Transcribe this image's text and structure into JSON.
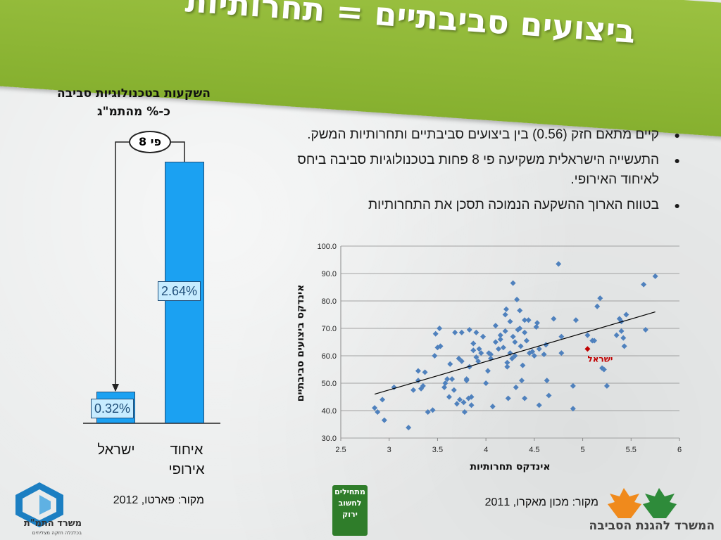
{
  "slide_title": "ביצועים סביבתיים = תחרותיות",
  "left_chart": {
    "title_line1": "השקעות בטכנולוגיות סביבה",
    "title_line2": "כ-% מהתמ\"ג",
    "ratio_label": "פי 8",
    "source": "מקור: פארטו, 2012",
    "bars": [
      {
        "category": "ישראל",
        "value": 0.32,
        "value_label": "0.32%"
      },
      {
        "category": "איחוד אירופי",
        "category_line1": "איחוד",
        "category_line2": "אירופי",
        "value": 2.64,
        "value_label": "2.64%"
      }
    ],
    "colors": {
      "bar": "#1ba1f2",
      "label_bg": "#c7ecff",
      "border": "#1f4e79"
    }
  },
  "bullets": [
    "קיים מתאם חזק  (0.56) בין ביצועים סביבתיים ותחרותיות המשק.",
    "התעשייה הישראלית משקיעה פי 8 פחות בטכנולוגיות סביבה ביחס לאיחוד האירופי.",
    "בטווח הארוך ההשקעה הנמוכה תסכן את התחרותיות"
  ],
  "scatter_source": "מקור: מכון מאקרו, 2011",
  "chart_data": {
    "type": "scatter",
    "xlabel": "אינדקס תחרותיות",
    "ylabel": "אינדקס ביצועים סביבתיים",
    "xlim": [
      2.5,
      6
    ],
    "ylim": [
      30,
      100
    ],
    "xticks": [
      "2.5",
      "3",
      "3.5",
      "4",
      "4.5",
      "5",
      "5.5",
      "6"
    ],
    "yticks": [
      "30.0",
      "40.0",
      "50.0",
      "60.0",
      "70.0",
      "80.0",
      "90.0",
      "100.0"
    ],
    "grid": true,
    "marker_color": "#4f81bd",
    "highlight_color": "#c00000",
    "highlight": {
      "label": "ישראל",
      "x": 5.05,
      "y": 62.5
    },
    "trendline": {
      "x": [
        2.85,
        5.75
      ],
      "y": [
        46.0,
        76.0
      ]
    },
    "points": [
      [
        2.85,
        41
      ],
      [
        2.88,
        39.5
      ],
      [
        2.93,
        44
      ],
      [
        2.95,
        36.5
      ],
      [
        3.05,
        48.5
      ],
      [
        3.2,
        33.8
      ],
      [
        3.25,
        47.5
      ],
      [
        3.3,
        54.5
      ],
      [
        3.3,
        51
      ],
      [
        3.33,
        48
      ],
      [
        3.35,
        49
      ],
      [
        3.37,
        54
      ],
      [
        3.4,
        39.5
      ],
      [
        3.45,
        40.2
      ],
      [
        3.47,
        60
      ],
      [
        3.48,
        68
      ],
      [
        3.5,
        63
      ],
      [
        3.52,
        70
      ],
      [
        3.53,
        63.5
      ],
      [
        3.57,
        48.5
      ],
      [
        3.58,
        50
      ],
      [
        3.6,
        51.5
      ],
      [
        3.62,
        45
      ],
      [
        3.63,
        57
      ],
      [
        3.65,
        51.5
      ],
      [
        3.67,
        47.5
      ],
      [
        3.68,
        68.5
      ],
      [
        3.7,
        42.5
      ],
      [
        3.72,
        59
      ],
      [
        3.73,
        44
      ],
      [
        3.75,
        58
      ],
      [
        3.75,
        68.5
      ],
      [
        3.77,
        43
      ],
      [
        3.78,
        39.5
      ],
      [
        3.8,
        51.5
      ],
      [
        3.8,
        51
      ],
      [
        3.82,
        44.5
      ],
      [
        3.83,
        56
      ],
      [
        3.83,
        69.5
      ],
      [
        3.85,
        42
      ],
      [
        3.85,
        45
      ],
      [
        3.87,
        62
      ],
      [
        3.87,
        64.5
      ],
      [
        3.9,
        68.5
      ],
      [
        3.9,
        59.5
      ],
      [
        3.92,
        58
      ],
      [
        3.93,
        62.5
      ],
      [
        3.95,
        61
      ],
      [
        3.97,
        67
      ],
      [
        4.0,
        50
      ],
      [
        4.02,
        54.5
      ],
      [
        4.03,
        61
      ],
      [
        4.05,
        59
      ],
      [
        4.05,
        60.5
      ],
      [
        4.07,
        41.5
      ],
      [
        4.1,
        71
      ],
      [
        4.1,
        65
      ],
      [
        4.13,
        62.5
      ],
      [
        4.15,
        66
      ],
      [
        4.15,
        67.5
      ],
      [
        4.18,
        63
      ],
      [
        4.2,
        69
      ],
      [
        4.2,
        75
      ],
      [
        4.21,
        77
      ],
      [
        4.22,
        56
      ],
      [
        4.22,
        57.5
      ],
      [
        4.23,
        44.5
      ],
      [
        4.25,
        61
      ],
      [
        4.25,
        72.5
      ],
      [
        4.27,
        59
      ],
      [
        4.28,
        86.5
      ],
      [
        4.28,
        67
      ],
      [
        4.3,
        65
      ],
      [
        4.3,
        60
      ],
      [
        4.31,
        48.5
      ],
      [
        4.32,
        80.5
      ],
      [
        4.33,
        69.5
      ],
      [
        4.35,
        76.5
      ],
      [
        4.35,
        70
      ],
      [
        4.36,
        63.5
      ],
      [
        4.37,
        51
      ],
      [
        4.38,
        56.5
      ],
      [
        4.4,
        68.5
      ],
      [
        4.4,
        73
      ],
      [
        4.4,
        44.5
      ],
      [
        4.42,
        65.5
      ],
      [
        4.44,
        73
      ],
      [
        4.45,
        61
      ],
      [
        4.48,
        61.5
      ],
      [
        4.5,
        60
      ],
      [
        4.52,
        70.5
      ],
      [
        4.53,
        72
      ],
      [
        4.55,
        62.5
      ],
      [
        4.55,
        42
      ],
      [
        4.6,
        60.5
      ],
      [
        4.62,
        64
      ],
      [
        4.63,
        51
      ],
      [
        4.65,
        45.5
      ],
      [
        4.7,
        73.5
      ],
      [
        4.75,
        93.5
      ],
      [
        4.78,
        67
      ],
      [
        4.78,
        61
      ],
      [
        4.9,
        40.7
      ],
      [
        4.9,
        49
      ],
      [
        4.93,
        73
      ],
      [
        5.05,
        67.5
      ],
      [
        5.1,
        65.5
      ],
      [
        5.12,
        65.5
      ],
      [
        5.15,
        78
      ],
      [
        5.18,
        81
      ],
      [
        5.2,
        55.5
      ],
      [
        5.22,
        55
      ],
      [
        5.25,
        49
      ],
      [
        5.35,
        67.5
      ],
      [
        5.38,
        73.5
      ],
      [
        5.4,
        72.5
      ],
      [
        5.4,
        69
      ],
      [
        5.42,
        66.5
      ],
      [
        5.43,
        63.5
      ],
      [
        5.45,
        75
      ],
      [
        5.63,
        86
      ],
      [
        5.65,
        69.5
      ],
      [
        5.75,
        89
      ]
    ]
  },
  "logos": {
    "left_name": "משרד התמ\"ת",
    "left_tagline": "בכלכלה חזקה מצליחים",
    "mid_text": "מתחילים לחשוב ירוק",
    "right_name": "המשרד להגנת הסביבה"
  }
}
